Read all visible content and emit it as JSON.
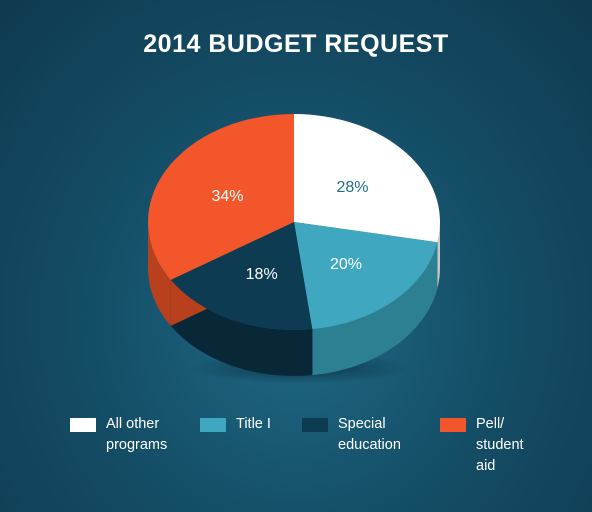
{
  "chart_data": {
    "type": "pie",
    "title": "2014 BUDGET REQUEST",
    "slices": [
      {
        "name": "All other\nprograms",
        "value": 28,
        "label": "28%",
        "color": "#ffffff",
        "side_color": "#c8c8c8"
      },
      {
        "name": "Title I",
        "value": 20,
        "label": "20%",
        "color": "#3fa7bf",
        "side_color": "#2d7f92"
      },
      {
        "name": "Special\neducation",
        "value": 18,
        "label": "18%",
        "color": "#0d3b52",
        "side_color": "#082838"
      },
      {
        "name": "Pell/\nstudent\naid",
        "value": 34,
        "label": "34%",
        "color": "#f2562a",
        "side_color": "#b8401d"
      }
    ],
    "legend_position": "bottom"
  }
}
